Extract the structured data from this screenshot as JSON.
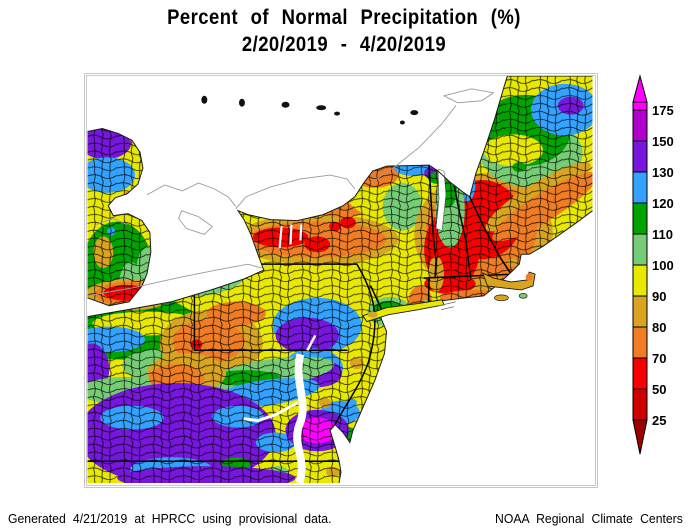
{
  "title": {
    "line1": "Percent of Normal Precipitation (%)",
    "line2": "2/20/2019 - 4/20/2019"
  },
  "footer": {
    "left": "Generated 4/21/2019 at HPRCC using provisional data.",
    "right": "NOAA Regional Climate Centers"
  },
  "colorbar": {
    "orientation": "vertical",
    "unit": "%",
    "top_arrow_color": "#FF00FF",
    "bottom_arrow_color": "#9D0000",
    "outline_color": "#000000",
    "segments": [
      {
        "label": "175",
        "color": "#FF00FF"
      },
      {
        "label": "150",
        "color": "#B200CC"
      },
      {
        "label": "130",
        "color": "#7716DD"
      },
      {
        "label": "120",
        "color": "#33A3FF"
      },
      {
        "label": "110",
        "color": "#00A300"
      },
      {
        "label": "100",
        "color": "#76CD76"
      },
      {
        "label": "90",
        "color": "#E8E800"
      },
      {
        "label": "80",
        "color": "#D9A521"
      },
      {
        "label": "70",
        "color": "#F07D24"
      },
      {
        "label": "50",
        "color": "#F80000"
      },
      {
        "label": "25",
        "color": "#CF0000"
      }
    ]
  },
  "map": {
    "land_base_color": "#E8E800",
    "water_color": "#FFFFFF",
    "county_line_color": "#000000",
    "canada_outline_color": "#9a9a9a"
  }
}
